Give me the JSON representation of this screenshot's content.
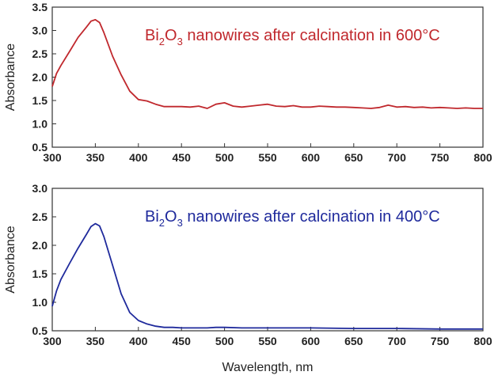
{
  "chart_data": [
    {
      "type": "line",
      "ylabel": "Absorbance",
      "xlabel": "",
      "xlim": [
        300,
        800
      ],
      "ylim": [
        0.5,
        3.5
      ],
      "x_ticks": [
        "300",
        "350",
        "400",
        "450",
        "500",
        "550",
        "600",
        "650",
        "700",
        "750",
        "800"
      ],
      "y_ticks": [
        "0.5",
        "1.0",
        "1.5",
        "2.0",
        "2.5",
        "3.0",
        "3.5"
      ],
      "annotation": {
        "pre": "Bi",
        "sub1": "2",
        "mid": "O",
        "sub2": "3",
        "post": " nanowires after calcination in 600°C"
      },
      "color": "#c0282d",
      "x": [
        300,
        305,
        310,
        320,
        330,
        340,
        345,
        350,
        355,
        360,
        370,
        380,
        390,
        400,
        410,
        420,
        430,
        440,
        450,
        460,
        470,
        480,
        490,
        500,
        510,
        520,
        530,
        540,
        550,
        560,
        570,
        580,
        590,
        600,
        610,
        620,
        630,
        640,
        650,
        660,
        670,
        680,
        690,
        700,
        710,
        720,
        730,
        740,
        750,
        760,
        770,
        780,
        790,
        800
      ],
      "y": [
        1.8,
        2.08,
        2.25,
        2.55,
        2.85,
        3.08,
        3.2,
        3.23,
        3.17,
        2.95,
        2.45,
        2.05,
        1.7,
        1.52,
        1.49,
        1.42,
        1.37,
        1.37,
        1.37,
        1.36,
        1.38,
        1.33,
        1.42,
        1.45,
        1.38,
        1.36,
        1.38,
        1.4,
        1.42,
        1.38,
        1.37,
        1.39,
        1.36,
        1.36,
        1.38,
        1.37,
        1.36,
        1.36,
        1.35,
        1.34,
        1.33,
        1.35,
        1.4,
        1.36,
        1.37,
        1.35,
        1.36,
        1.34,
        1.35,
        1.34,
        1.33,
        1.34,
        1.33,
        1.33
      ]
    },
    {
      "type": "line",
      "ylabel": "Absorbance",
      "xlabel": "Wavelength, nm",
      "xlim": [
        300,
        800
      ],
      "ylim": [
        0.5,
        3.0
      ],
      "x_ticks": [
        "300",
        "350",
        "400",
        "450",
        "500",
        "550",
        "600",
        "650",
        "700",
        "750",
        "800"
      ],
      "y_ticks": [
        "0.5",
        "1.0",
        "1.5",
        "2.0",
        "2.5",
        "3.0"
      ],
      "annotation": {
        "pre": "Bi",
        "sub1": "2",
        "mid": "O",
        "sub2": "3",
        "post": " nanowires after calcination in 400°C"
      },
      "color": "#1f2a9c",
      "x": [
        300,
        305,
        310,
        320,
        330,
        340,
        345,
        350,
        355,
        360,
        370,
        380,
        390,
        400,
        410,
        420,
        430,
        440,
        450,
        460,
        470,
        480,
        490,
        500,
        520,
        550,
        600,
        650,
        700,
        750,
        800
      ],
      "y": [
        0.93,
        1.2,
        1.4,
        1.68,
        1.95,
        2.2,
        2.33,
        2.38,
        2.34,
        2.15,
        1.65,
        1.15,
        0.82,
        0.68,
        0.62,
        0.58,
        0.56,
        0.56,
        0.55,
        0.55,
        0.55,
        0.55,
        0.56,
        0.56,
        0.55,
        0.55,
        0.55,
        0.54,
        0.54,
        0.53,
        0.53
      ]
    }
  ]
}
